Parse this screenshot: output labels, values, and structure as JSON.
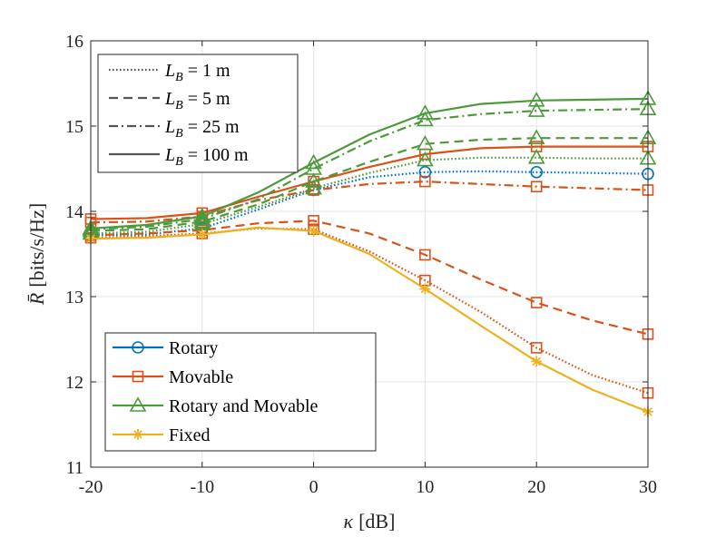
{
  "chart_data": {
    "type": "line",
    "title": "",
    "xlabel": {
      "symbol": "κ",
      "unit": "[dB]"
    },
    "ylabel": {
      "symbol": "R̄",
      "unit": "[bits/s/Hz]"
    },
    "xlim": [
      -20,
      30
    ],
    "ylim": [
      11,
      16
    ],
    "x_ticks": [
      -20,
      -10,
      0,
      10,
      20,
      30
    ],
    "y_ticks": [
      11,
      12,
      13,
      14,
      15,
      16
    ],
    "x_tick_labels": [
      "-20",
      "-10",
      "0",
      "10",
      "20",
      "30"
    ],
    "y_tick_labels": [
      "11",
      "12",
      "13",
      "14",
      "15",
      "16"
    ],
    "grid": true,
    "x": [
      -20,
      -15,
      -10,
      -5,
      0,
      5,
      10,
      15,
      20,
      25,
      30
    ],
    "marker_x": [
      -20,
      -10,
      0,
      10,
      20,
      30
    ],
    "series": [
      {
        "name": "Rotary, L_B = 1 m",
        "method": "Rotary",
        "color": "#0072BD",
        "marker": "circle",
        "linestyle": "dotted",
        "values": [
          13.72,
          13.73,
          13.8,
          14.02,
          14.25,
          14.4,
          14.46,
          14.47,
          14.46,
          14.45,
          14.44
        ]
      },
      {
        "name": "Movable, L_B = 1 m",
        "method": "Movable",
        "color": "#D95319",
        "marker": "square",
        "linestyle": "dotted",
        "values": [
          13.69,
          13.71,
          13.74,
          13.8,
          13.79,
          13.53,
          13.19,
          12.82,
          12.4,
          12.08,
          11.87
        ]
      },
      {
        "name": "Movable, L_B = 5 m",
        "method": "Movable",
        "color": "#D95319",
        "marker": "square",
        "linestyle": "dashed",
        "values": [
          13.72,
          13.74,
          13.78,
          13.86,
          13.89,
          13.74,
          13.49,
          13.2,
          12.93,
          12.72,
          12.56
        ]
      },
      {
        "name": "Movable, L_B = 25 m",
        "method": "Movable",
        "color": "#D95319",
        "marker": "square",
        "linestyle": "dashdot",
        "values": [
          13.87,
          13.88,
          13.94,
          14.13,
          14.25,
          14.32,
          14.35,
          14.32,
          14.29,
          14.27,
          14.25
        ]
      },
      {
        "name": "Movable, L_B = 100 m",
        "method": "Movable",
        "color": "#D95319",
        "marker": "square",
        "linestyle": "solid",
        "values": [
          13.91,
          13.92,
          13.98,
          14.17,
          14.35,
          14.52,
          14.67,
          14.74,
          14.76,
          14.76,
          14.76
        ]
      },
      {
        "name": "Rotary and Movable, L_B = 1 m",
        "method": "Rotary and Movable",
        "color": "#4C9A3C",
        "marker": "triangle",
        "linestyle": "dotted",
        "values": [
          13.74,
          13.76,
          13.85,
          14.05,
          14.27,
          14.45,
          14.6,
          14.63,
          14.63,
          14.62,
          14.62
        ]
      },
      {
        "name": "Rotary and Movable, L_B = 5 m",
        "method": "Rotary and Movable",
        "color": "#4C9A3C",
        "marker": "triangle",
        "linestyle": "dashed",
        "values": [
          13.77,
          13.79,
          13.88,
          14.08,
          14.35,
          14.58,
          14.79,
          14.84,
          14.86,
          14.86,
          14.86
        ]
      },
      {
        "name": "Rotary and Movable, L_B = 25 m",
        "method": "Rotary and Movable",
        "color": "#4C9A3C",
        "marker": "triangle",
        "linestyle": "dashdot",
        "values": [
          13.79,
          13.82,
          13.91,
          14.14,
          14.5,
          14.82,
          15.07,
          15.14,
          15.18,
          15.19,
          15.2
        ]
      },
      {
        "name": "Rotary and Movable, L_B = 100 m",
        "method": "Rotary and Movable",
        "color": "#4C9A3C",
        "marker": "triangle",
        "linestyle": "solid",
        "values": [
          13.8,
          13.84,
          13.94,
          14.22,
          14.57,
          14.9,
          15.15,
          15.26,
          15.3,
          15.31,
          15.32
        ]
      },
      {
        "name": "Fixed",
        "method": "Fixed",
        "color": "#EDB120",
        "marker": "asterisk",
        "linestyle": "solid",
        "values": [
          13.68,
          13.69,
          13.73,
          13.81,
          13.77,
          13.5,
          13.09,
          12.66,
          12.24,
          11.91,
          11.65
        ]
      }
    ],
    "legend_linestyle": {
      "location": "top-left",
      "entries": [
        {
          "style": "dotted",
          "sym": "L",
          "sub": "B",
          "rest": " = 1 m"
        },
        {
          "style": "dashed",
          "sym": "L",
          "sub": "B",
          "rest": " = 5 m"
        },
        {
          "style": "dashdot",
          "sym": "L",
          "sub": "B",
          "rest": " = 25 m"
        },
        {
          "style": "solid",
          "sym": "L",
          "sub": "B",
          "rest": " = 100 m"
        }
      ]
    },
    "legend_method": {
      "location": "bottom-left",
      "entries": [
        {
          "label": "Rotary",
          "color": "#0072BD",
          "marker": "circle"
        },
        {
          "label": "Movable",
          "color": "#D95319",
          "marker": "square"
        },
        {
          "label": "Rotary and Movable",
          "color": "#4C9A3C",
          "marker": "triangle"
        },
        {
          "label": "Fixed",
          "color": "#EDB120",
          "marker": "asterisk"
        }
      ]
    }
  }
}
